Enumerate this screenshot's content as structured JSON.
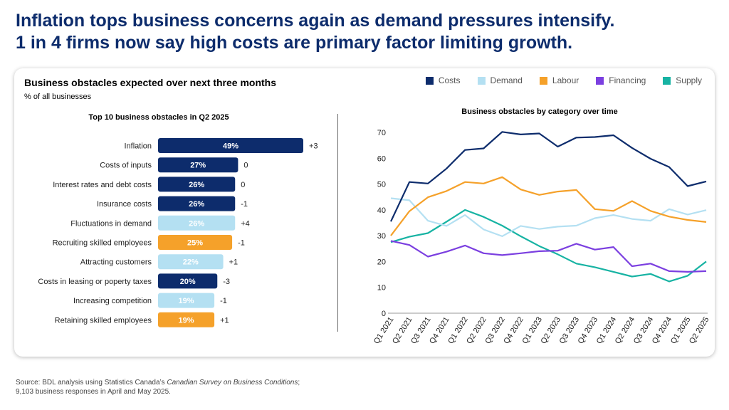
{
  "headline": {
    "line1": "Inflation tops business concerns again as demand pressures intensify.",
    "line2": "1 in 4 firms now say high costs are primary factor limiting growth."
  },
  "card": {
    "title": "Business obstacles expected over next three months",
    "subtitle": "% of all businesses"
  },
  "legend": [
    {
      "name": "Costs",
      "color": "#0d2c6c"
    },
    {
      "name": "Demand",
      "color": "#b4e0f2"
    },
    {
      "name": "Labour",
      "color": "#f5a12a"
    },
    {
      "name": "Financing",
      "color": "#7b3fe0"
    },
    {
      "name": "Supply",
      "color": "#17b3a3"
    }
  ],
  "footer": {
    "line1_prefix": "Source: BDL analysis using Statistics Canada’s ",
    "line1_italic": "Canadian Survey on Business Conditions",
    "line1_suffix": ";",
    "line2": "9,103 business responses in April and May 2025."
  },
  "chart_data": [
    {
      "type": "bar",
      "orientation": "horizontal",
      "title": "Top 10 business obstacles in Q2 2025",
      "categories": [
        "Inflation",
        "Costs of inputs",
        "Interest rates and debt costs",
        "Insurance costs",
        "Fluctuations in demand",
        "Recruiting skilled employees",
        "Attracting customers",
        "Costs in leasing or poperty taxes",
        "Increasing competition",
        "Retaining skilled employees"
      ],
      "values": [
        49,
        27,
        26,
        26,
        26,
        25,
        22,
        20,
        19,
        19
      ],
      "value_labels": [
        "49%",
        "27%",
        "26%",
        "26%",
        "26%",
        "25%",
        "22%",
        "20%",
        "19%",
        "19%"
      ],
      "changes": [
        "+3",
        "0",
        "0",
        "-1",
        "+4",
        "-1",
        "+1",
        "-3",
        "-1",
        "+1"
      ],
      "bar_categories": [
        "Costs",
        "Costs",
        "Costs",
        "Costs",
        "Demand",
        "Labour",
        "Demand",
        "Costs",
        "Demand",
        "Labour"
      ],
      "xlim": [
        0,
        55
      ]
    },
    {
      "type": "line",
      "title": "Business obstacles by category over time",
      "x": [
        "Q1 2021",
        "Q2 2021",
        "Q3 2021",
        "Q4 2021",
        "Q1 2022",
        "Q2 2022",
        "Q3 2022",
        "Q4 2022",
        "Q1 2023",
        "Q2 2023",
        "Q3 2023",
        "Q4 2023",
        "Q1 2024",
        "Q2 2024",
        "Q3 2024",
        "Q4 2024",
        "Q1 2025",
        "Q2 2025"
      ],
      "ylim": [
        0,
        70
      ],
      "yticks": [
        0,
        10,
        20,
        30,
        40,
        50,
        60,
        70
      ],
      "series": [
        {
          "name": "Costs",
          "values": [
            35.5,
            50.8,
            50.2,
            56,
            63.2,
            63.8,
            70.2,
            69.2,
            69.6,
            64.5,
            68,
            68.2,
            68.9,
            64,
            59.8,
            56.6,
            49.2,
            51
          ]
        },
        {
          "name": "Demand",
          "values": [
            44.5,
            43.7,
            35.8,
            33.8,
            38,
            32.4,
            29.8,
            33.8,
            32.6,
            33.5,
            33.9,
            36.8,
            38,
            36.5,
            35.8,
            40.3,
            38.2,
            39.9
          ]
        },
        {
          "name": "Labour",
          "values": [
            30,
            39.5,
            44.9,
            47.3,
            50.8,
            50.2,
            52.7,
            47.9,
            45.8,
            47.1,
            47.7,
            40.3,
            39.6,
            43.4,
            39.6,
            37.4,
            36.1,
            35.3
          ]
        },
        {
          "name": "Financing",
          "values": [
            28,
            26.4,
            21.9,
            23.8,
            26.2,
            23.2,
            22.5,
            23.2,
            24,
            24.2,
            26.9,
            24.6,
            25.6,
            18.2,
            19.2,
            16.3,
            16,
            16.3
          ]
        },
        {
          "name": "Supply",
          "values": [
            27.5,
            29.6,
            31,
            35.4,
            40,
            37.3,
            33.9,
            29.8,
            26,
            22.8,
            19.2,
            17.8,
            16,
            14.2,
            15.2,
            12.3,
            14.5,
            20
          ]
        }
      ]
    }
  ]
}
